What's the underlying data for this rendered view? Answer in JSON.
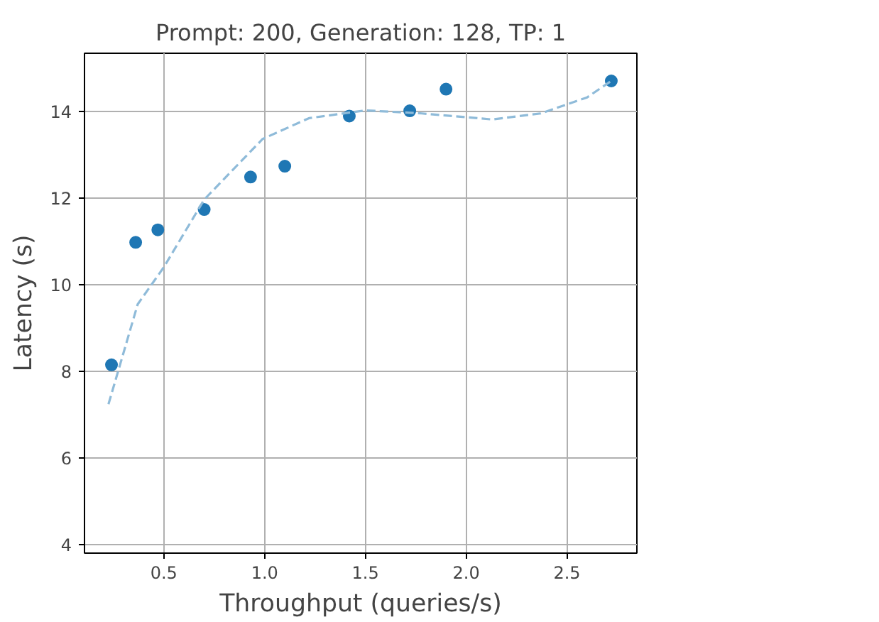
{
  "chart_data": {
    "type": "scatter",
    "title": "Prompt: 200, Generation: 128, TP: 1",
    "xlabel": "Throughput (queries/s)",
    "ylabel": "Latency (s)",
    "xlim": [
      0.106,
      2.847
    ],
    "ylim": [
      3.8,
      15.35
    ],
    "xticks": [
      0.5,
      {
        "value": 1,
        "label": "1.0"
      },
      1.5,
      {
        "value": 2,
        "label": "2.0"
      },
      2.5
    ],
    "yticks": [
      4,
      6,
      8,
      10,
      12,
      14
    ],
    "grid": true,
    "marker": "circle",
    "series": [
      {
        "color": "#1f77b4",
        "x": [
          0.24,
          0.36,
          0.47,
          0.7,
          0.93,
          1.1,
          1.42,
          1.72,
          1.9,
          2.72
        ],
        "values": [
          8.15,
          10.98,
          11.27,
          11.74,
          12.49,
          12.74,
          13.9,
          14.02,
          14.52,
          14.71
        ]
      },
      {
        "type": "line",
        "color": "#8fbbd9",
        "line_style": "dashed",
        "marker": "none",
        "x": [
          0.225,
          0.37,
          0.5,
          0.7,
          0.99,
          1.22,
          1.5,
          1.78,
          2.13,
          2.37,
          2.6,
          2.72
        ],
        "values": [
          7.24,
          9.55,
          10.41,
          11.97,
          13.37,
          13.85,
          14.03,
          13.96,
          13.82,
          13.96,
          14.33,
          14.71
        ]
      }
    ]
  }
}
